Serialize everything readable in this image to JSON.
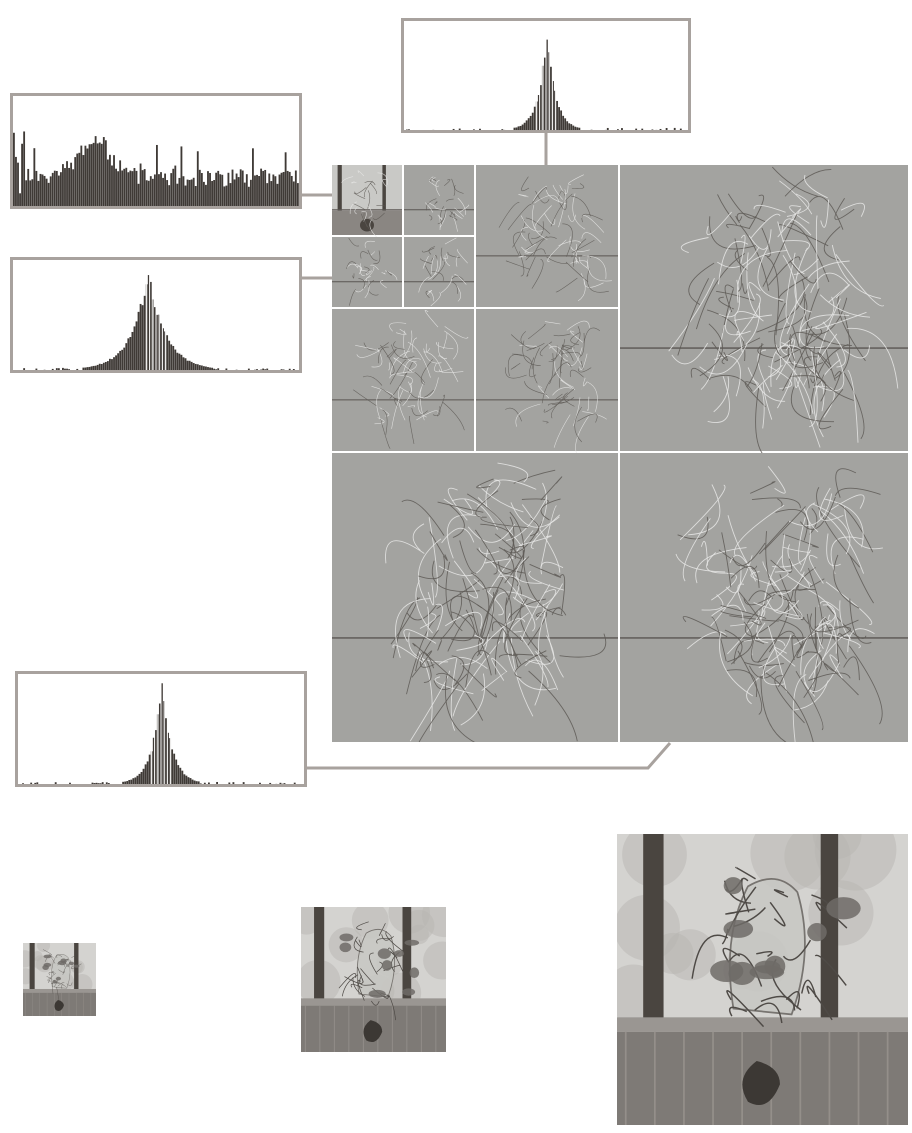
{
  "colors": {
    "frame": "#a8a29e",
    "bar": "#3f3a36",
    "detail_gray": "#a3a3a0",
    "grid_line": "#ffffff",
    "photo_dark": "#4a4540",
    "photo_light": "#c9c9c6"
  },
  "histograms": [
    {
      "id": "approximation",
      "shape": "wide",
      "center": 0.3,
      "spread": 0.45
    },
    {
      "id": "level1-horizontal-detail",
      "shape": "peaked",
      "center": 0.5,
      "spread": 0.06
    },
    {
      "id": "level2-detail",
      "shape": "peaked",
      "center": 0.5,
      "spread": 0.08
    },
    {
      "id": "level3-detail",
      "shape": "very-peaked",
      "center": 0.5,
      "spread": 0.04
    }
  ],
  "reconstructions": [
    "small",
    "medium",
    "large"
  ]
}
